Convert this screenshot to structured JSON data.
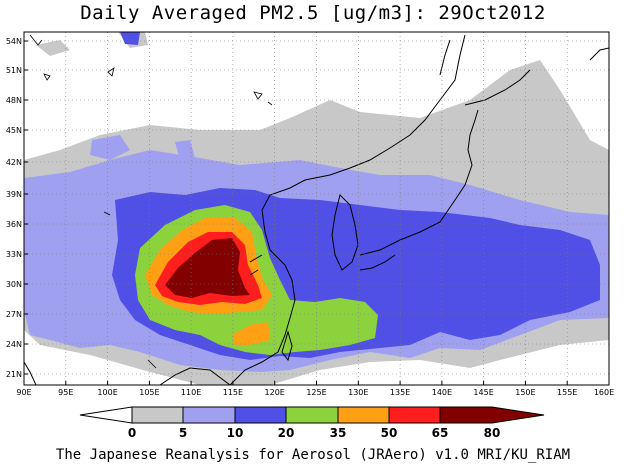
{
  "title": "Daily Averaged PM2.5 [ug/m3]: 29Oct2012",
  "footer": "The Japanese Reanalysis for Aerosol (JRAero) v1.0 MRI/KU_RIAM",
  "lat_labels": [
    "54N",
    "51N",
    "48N",
    "45N",
    "42N",
    "39N",
    "36N",
    "33N",
    "30N",
    "27N",
    "24N",
    "21N"
  ],
  "lon_labels": [
    "90E",
    "95E",
    "100E",
    "105E",
    "110E",
    "115E",
    "120E",
    "125E",
    "130E",
    "135E",
    "140E",
    "145E",
    "150E",
    "155E",
    "160E"
  ],
  "colorbar": {
    "labels": [
      "0",
      "5",
      "10",
      "20",
      "35",
      "50",
      "65",
      "80"
    ],
    "colors": [
      "#ffffff",
      "#c8c8c8",
      "#a0a0f0",
      "#5050e6",
      "#8cd23c",
      "#ffa014",
      "#ff1e1e",
      "#820000"
    ]
  }
}
